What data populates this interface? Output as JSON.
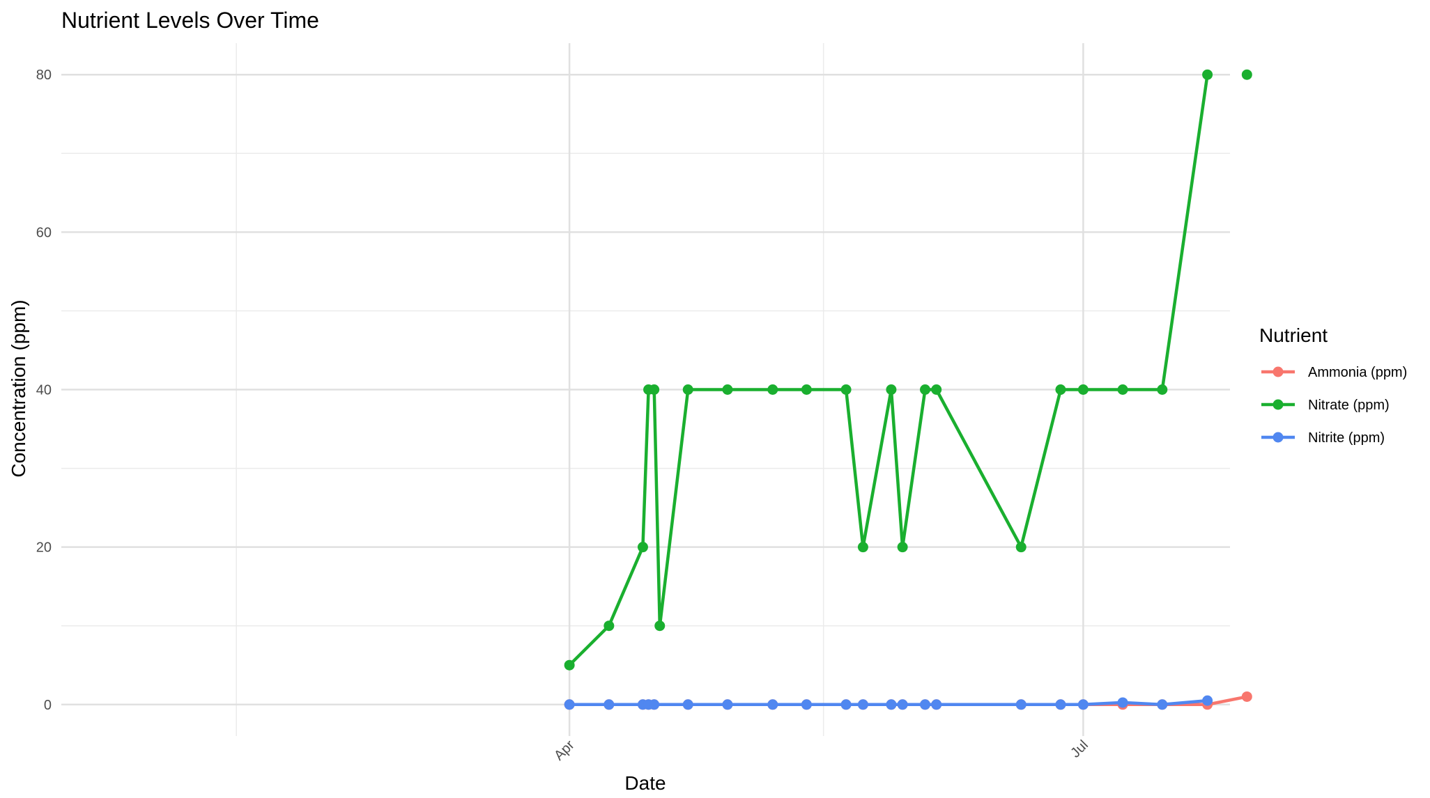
{
  "chart_data": {
    "type": "line",
    "title": "Nutrient Levels Over Time",
    "xlabel": "Date",
    "ylabel": "Concentration (ppm)",
    "x_axis_kind": "date",
    "xlim": [
      "2023-01-01",
      "2023-07-25"
    ],
    "ylim": [
      -4,
      84
    ],
    "x_ticks": [
      {
        "date": "2023-04-01",
        "label": "Apr"
      },
      {
        "date": "2023-07-01",
        "label": "Jul"
      }
    ],
    "x_minor_ticks": [
      "2023-02-01",
      "2023-05-16"
    ],
    "y_ticks": [
      0,
      20,
      40,
      60,
      80
    ],
    "y_minor_ticks": [
      10,
      30,
      50,
      70
    ],
    "grid": true,
    "legend": {
      "title": "Nutrient",
      "position": "right"
    },
    "series": [
      {
        "name": "Ammonia (ppm)",
        "color": "#F8766D",
        "points": [
          {
            "x": "2023-04-01",
            "y": 0
          },
          {
            "x": "2023-04-08",
            "y": 0
          },
          {
            "x": "2023-04-14",
            "y": 0
          },
          {
            "x": "2023-04-15",
            "y": 0
          },
          {
            "x": "2023-04-16",
            "y": 0
          },
          {
            "x": "2023-04-22",
            "y": 0
          },
          {
            "x": "2023-04-29",
            "y": 0
          },
          {
            "x": "2023-05-07",
            "y": 0
          },
          {
            "x": "2023-05-13",
            "y": 0
          },
          {
            "x": "2023-05-20",
            "y": 0
          },
          {
            "x": "2023-05-23",
            "y": 0
          },
          {
            "x": "2023-05-28",
            "y": 0
          },
          {
            "x": "2023-05-30",
            "y": 0
          },
          {
            "x": "2023-06-03",
            "y": 0
          },
          {
            "x": "2023-06-05",
            "y": 0
          },
          {
            "x": "2023-06-20",
            "y": 0
          },
          {
            "x": "2023-06-27",
            "y": 0
          },
          {
            "x": "2023-07-01",
            "y": 0
          },
          {
            "x": "2023-07-08",
            "y": 0
          },
          {
            "x": "2023-07-15",
            "y": 0
          },
          {
            "x": "2023-07-23",
            "y": 0
          },
          {
            "x": "2023-07-30",
            "y": 1
          }
        ]
      },
      {
        "name": "Nitrate (ppm)",
        "color": "#1AAF2F",
        "points": [
          {
            "x": "2023-04-01",
            "y": 5
          },
          {
            "x": "2023-04-08",
            "y": 10
          },
          {
            "x": "2023-04-14",
            "y": 20
          },
          {
            "x": "2023-04-15",
            "y": 40
          },
          {
            "x": "2023-04-16",
            "y": 40
          },
          {
            "x": "2023-04-17",
            "y": 10
          },
          {
            "x": "2023-04-22",
            "y": 40
          },
          {
            "x": "2023-04-29",
            "y": 40
          },
          {
            "x": "2023-05-07",
            "y": 40
          },
          {
            "x": "2023-05-13",
            "y": 40
          },
          {
            "x": "2023-05-20",
            "y": 40
          },
          {
            "x": "2023-05-23",
            "y": 20
          },
          {
            "x": "2023-05-28",
            "y": 40
          },
          {
            "x": "2023-05-30",
            "y": 20
          },
          {
            "x": "2023-06-03",
            "y": 40
          },
          {
            "x": "2023-06-05",
            "y": 40
          },
          {
            "x": "2023-06-20",
            "y": 20
          },
          {
            "x": "2023-06-27",
            "y": 40
          },
          {
            "x": "2023-07-01",
            "y": 40
          },
          {
            "x": "2023-07-08",
            "y": 40
          },
          {
            "x": "2023-07-15",
            "y": 40
          },
          {
            "x": "2023-07-23",
            "y": 80
          },
          {
            "x": "2023-07-30",
            "y": 80,
            "isolated": true
          }
        ]
      },
      {
        "name": "Nitrite (ppm)",
        "color": "#5087F0",
        "points": [
          {
            "x": "2023-04-01",
            "y": 0
          },
          {
            "x": "2023-04-08",
            "y": 0
          },
          {
            "x": "2023-04-14",
            "y": 0
          },
          {
            "x": "2023-04-15",
            "y": 0
          },
          {
            "x": "2023-04-16",
            "y": 0
          },
          {
            "x": "2023-04-22",
            "y": 0
          },
          {
            "x": "2023-04-29",
            "y": 0
          },
          {
            "x": "2023-05-07",
            "y": 0
          },
          {
            "x": "2023-05-13",
            "y": 0
          },
          {
            "x": "2023-05-20",
            "y": 0
          },
          {
            "x": "2023-05-23",
            "y": 0
          },
          {
            "x": "2023-05-28",
            "y": 0
          },
          {
            "x": "2023-05-30",
            "y": 0
          },
          {
            "x": "2023-06-03",
            "y": 0
          },
          {
            "x": "2023-06-05",
            "y": 0
          },
          {
            "x": "2023-06-20",
            "y": 0
          },
          {
            "x": "2023-06-27",
            "y": 0
          },
          {
            "x": "2023-07-01",
            "y": 0
          },
          {
            "x": "2023-07-08",
            "y": 0.25
          },
          {
            "x": "2023-07-15",
            "y": 0
          },
          {
            "x": "2023-07-23",
            "y": 0.5
          }
        ]
      }
    ]
  }
}
